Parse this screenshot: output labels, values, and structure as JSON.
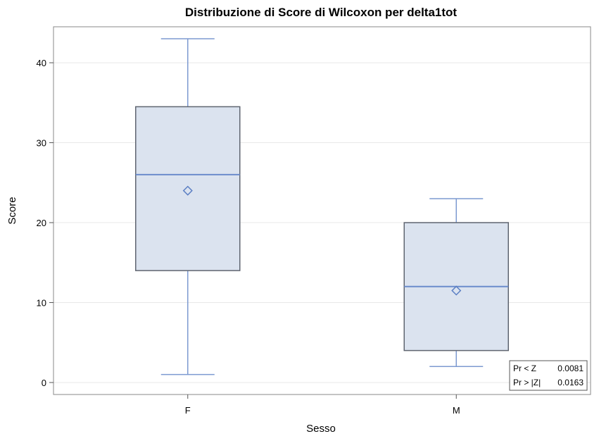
{
  "chart_data": {
    "type": "box",
    "title": "Distribuzione di Score di Wilcoxon per delta1tot",
    "xlabel": "Sesso",
    "ylabel": "Score",
    "ylim": [
      -1.5,
      44.5
    ],
    "yticks": [
      0,
      10,
      20,
      30,
      40
    ],
    "grid": true,
    "categories": [
      "F",
      "M"
    ],
    "boxes": [
      {
        "category": "F",
        "whisker_low": 1,
        "q1": 14,
        "median": 26,
        "q3": 34.5,
        "whisker_high": 43,
        "mean": 24
      },
      {
        "category": "M",
        "whisker_low": 2,
        "q1": 4,
        "median": 12,
        "q3": 20,
        "whisker_high": 23,
        "mean": 11.5
      }
    ],
    "stats_inset": {
      "position": "bottom-right",
      "rows": [
        {
          "label": "Pr < Z",
          "value": "0.0081"
        },
        {
          "label": "Pr > |Z|",
          "value": "0.0163"
        }
      ]
    },
    "colors": {
      "box_fill": "#dbe3ef",
      "box_stroke": "#5f6570",
      "whisker": "#7d9ad1",
      "median": "#6b8ccc",
      "mean_marker": "#5b7fc4",
      "grid": "#e8e8e8",
      "frame": "#8a8a8a"
    }
  }
}
